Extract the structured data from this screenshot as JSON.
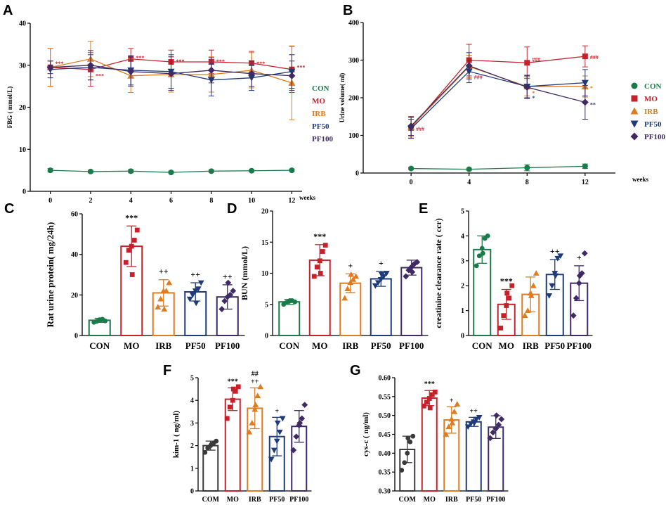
{
  "panel_labels": [
    "A",
    "B",
    "C",
    "D",
    "E",
    "F",
    "G"
  ],
  "colors": {
    "CON": "#1a7a4a",
    "MO": "#c8202b",
    "IRB": "#e07b1f",
    "PF50": "#1e3a7a",
    "PF100": "#3f2a63",
    "COM": "#3a3a3a",
    "annotation": "#c8202b",
    "black": "#222222"
  },
  "chart_data": [
    {
      "id": "A",
      "type": "line",
      "ylabel": "FBG ( mmol/L)",
      "xlabel": "weeks",
      "x": [
        0,
        2,
        4,
        6,
        8,
        10,
        12
      ],
      "x_ticks": [
        "0",
        "2",
        "4",
        "6",
        "8",
        "10",
        "12"
      ],
      "ylim": [
        0,
        40
      ],
      "y_ticks": [
        "0",
        "10",
        "20",
        "30",
        "40"
      ],
      "series": [
        {
          "name": "CON",
          "values": [
            5.0,
            4.7,
            4.8,
            4.5,
            4.8,
            4.9,
            5.0
          ],
          "err": [
            0.4,
            0.3,
            0.4,
            0.3,
            0.3,
            0.3,
            0.3
          ]
        },
        {
          "name": "MO",
          "values": [
            29.5,
            29.0,
            31.5,
            30.8,
            30.8,
            30.5,
            29.0
          ],
          "err": [
            4.5,
            4.0,
            2.5,
            2.8,
            2.8,
            2.8,
            5.5
          ]
        },
        {
          "name": "IRB",
          "values": [
            29.5,
            31.5,
            27.5,
            27.8,
            27.8,
            28.8,
            25.8
          ],
          "err": [
            4.5,
            4.2,
            4.0,
            4.2,
            4.2,
            4.2,
            8.8
          ]
        },
        {
          "name": "PF50",
          "values": [
            29.0,
            29.5,
            28.8,
            28.5,
            26.5,
            27.0,
            28.5
          ],
          "err": [
            2.0,
            3.0,
            3.5,
            4.0,
            3.8,
            3.0,
            4.0
          ]
        },
        {
          "name": "PF100",
          "values": [
            29.5,
            30.0,
            28.5,
            28.0,
            28.8,
            28.0,
            27.5
          ],
          "err": [
            1.5,
            3.5,
            3.5,
            4.0,
            3.0,
            3.0,
            3.5
          ]
        }
      ],
      "annotations": [
        {
          "text": "***",
          "x": 0,
          "y": 30.5
        },
        {
          "text": "***",
          "x": 2,
          "y": 27.5
        },
        {
          "text": "***",
          "x": 4,
          "y": 31.8
        },
        {
          "text": "***",
          "x": 6,
          "y": 31.0
        },
        {
          "text": "***",
          "x": 8,
          "y": 31.0
        },
        {
          "text": "***",
          "x": 10,
          "y": 30.5
        },
        {
          "text": "***",
          "x": 12,
          "y": 29.5
        }
      ]
    },
    {
      "id": "B",
      "type": "line",
      "ylabel": "Urine volume( ml)",
      "xlabel": "weeks",
      "x": [
        0,
        4,
        8,
        12
      ],
      "x_ticks": [
        "0",
        "4",
        "8",
        "12"
      ],
      "ylim": [
        0,
        400
      ],
      "y_ticks": [
        "0",
        "100",
        "200",
        "300",
        "400"
      ],
      "series": [
        {
          "name": "CON",
          "values": [
            12,
            10,
            14,
            18
          ],
          "err": [
            3,
            3,
            8,
            6
          ]
        },
        {
          "name": "MO",
          "values": [
            120,
            300,
            293,
            310
          ],
          "err": [
            28,
            42,
            42,
            28
          ]
        },
        {
          "name": "IRB",
          "values": [
            122,
            283,
            230,
            230
          ],
          "err": [
            25,
            30,
            25,
            28
          ]
        },
        {
          "name": "PF50",
          "values": [
            118,
            270,
            230,
            240
          ],
          "err": [
            25,
            30,
            30,
            35
          ]
        },
        {
          "name": "PF100",
          "values": [
            125,
            285,
            228,
            188
          ],
          "err": [
            25,
            35,
            30,
            45
          ]
        }
      ],
      "legend": [
        "CON",
        "MO",
        "IRB",
        "PF50",
        "PF100"
      ],
      "annotations": [
        {
          "text": "###",
          "x": 0,
          "y": 118,
          "color": "MO"
        },
        {
          "text": "###",
          "x": 4,
          "y": 255,
          "color": "MO"
        },
        {
          "text": "###",
          "x": 8,
          "y": 302,
          "color": "MO"
        },
        {
          "text": "###",
          "x": 12,
          "y": 308,
          "color": "MO"
        },
        {
          "text": "*",
          "x": 8,
          "y": 213,
          "color": "IRB"
        },
        {
          "text": "*",
          "x": 8,
          "y": 200,
          "color": "PF50"
        },
        {
          "text": "*",
          "x": 12,
          "y": 226,
          "color": "IRB"
        },
        {
          "text": "**",
          "x": 12,
          "y": 182,
          "color": "PF100"
        }
      ]
    },
    {
      "id": "C",
      "type": "bar",
      "ylabel": "Rat urine protein( mg/24h)",
      "categories": [
        "CON",
        "MO",
        "IRB",
        "PF50",
        "PF100"
      ],
      "values": [
        7.5,
        44,
        21,
        21.5,
        19
      ],
      "err": [
        1.0,
        10,
        6.5,
        4.5,
        6.0
      ],
      "points": [
        [
          6.5,
          7.0,
          7.8,
          8.0,
          7.2,
          7.5
        ],
        [
          36,
          42,
          44,
          47,
          52,
          30
        ],
        [
          14,
          18,
          22,
          22,
          26,
          13
        ],
        [
          18,
          20,
          22,
          23,
          26,
          16
        ],
        [
          13,
          17,
          19,
          20,
          22,
          26
        ]
      ],
      "ylim": [
        0,
        60
      ],
      "y_ticks": [
        "0",
        "20",
        "40",
        "60"
      ],
      "annotations": [
        "",
        "***",
        "++",
        "++",
        "++"
      ]
    },
    {
      "id": "D",
      "type": "bar",
      "ylabel": "BUN (mmol/L)",
      "categories": [
        "CON",
        "MO",
        "IRB",
        "PF50",
        "PF100"
      ],
      "values": [
        5.4,
        12.1,
        8.4,
        9.1,
        10.9
      ],
      "err": [
        0.4,
        2.5,
        1.5,
        1.2,
        1.2
      ],
      "points": [
        [
          5.0,
          5.3,
          5.5,
          5.6,
          5.4,
          5.6
        ],
        [
          9.5,
          11,
          12,
          13.5,
          14.5,
          10
        ],
        [
          6,
          7.5,
          8.5,
          9,
          9.5,
          9.8
        ],
        [
          8,
          8.5,
          9,
          9.5,
          10,
          9.8
        ],
        [
          9.5,
          10.5,
          11,
          11.5,
          11.8,
          10.2
        ]
      ],
      "ylim": [
        0,
        20
      ],
      "y_ticks": [
        "0",
        "5",
        "10",
        "15",
        "20"
      ],
      "annotations": [
        "",
        "***",
        "+",
        "+",
        ""
      ]
    },
    {
      "id": "E",
      "type": "bar",
      "ylabel": "creatinine clearance rate ( ccr)",
      "categories": [
        "CON",
        "MO",
        "IRB",
        "PF50",
        "PF100"
      ],
      "values": [
        3.45,
        1.25,
        1.65,
        2.45,
        2.1
      ],
      "err": [
        0.55,
        0.6,
        0.7,
        0.6,
        0.7
      ],
      "points": [
        [
          2.8,
          3.2,
          3.5,
          3.9,
          4.0,
          3.3
        ],
        [
          0.3,
          0.8,
          1.2,
          1.5,
          2.0,
          1.7
        ],
        [
          0.8,
          1.0,
          1.7,
          2.0,
          2.5,
          1.6
        ],
        [
          1.6,
          2.0,
          2.5,
          3.1,
          3.2,
          2.4
        ],
        [
          0.8,
          1.5,
          2.1,
          2.5,
          3.3,
          2.4
        ]
      ],
      "ylim": [
        0,
        5
      ],
      "y_ticks": [
        "0",
        "1",
        "2",
        "3",
        "4",
        "5"
      ],
      "annotations": [
        "",
        "***",
        "",
        "++",
        "+"
      ]
    },
    {
      "id": "F",
      "type": "bar",
      "ylabel": "kim-1 ( ng/ml)",
      "categories": [
        "COM",
        "MO",
        "IRB",
        "PF50",
        "PF100"
      ],
      "values": [
        2.0,
        4.05,
        3.65,
        2.4,
        2.85
      ],
      "err": [
        0.2,
        0.5,
        0.9,
        0.85,
        0.7
      ],
      "points": [
        [
          1.7,
          1.9,
          2.0,
          2.1,
          2.2,
          2.05
        ],
        [
          3.2,
          3.7,
          4.0,
          4.4,
          4.6,
          4.5
        ],
        [
          2.6,
          3.0,
          3.6,
          4.2,
          4.6,
          3.8
        ],
        [
          1.4,
          1.8,
          2.2,
          2.6,
          3.2,
          3.0
        ],
        [
          1.8,
          2.4,
          2.9,
          3.2,
          3.8,
          3.0
        ]
      ],
      "ylim": [
        0,
        5
      ],
      "y_ticks": [
        "0",
        "1",
        "2",
        "3",
        "4",
        "5"
      ],
      "annotations": [
        "",
        "***",
        "## ++",
        "+",
        ""
      ]
    },
    {
      "id": "G",
      "type": "bar",
      "ylabel": "cys-c ( ng/ml)",
      "categories": [
        "COM",
        "MO",
        "IRB",
        "PF50",
        "PF100"
      ],
      "values": [
        0.41,
        0.546,
        0.488,
        0.483,
        0.469
      ],
      "err": [
        0.035,
        0.02,
        0.035,
        0.012,
        0.03
      ],
      "points": [
        [
          0.355,
          0.375,
          0.4,
          0.43,
          0.445,
          0.44
        ],
        [
          0.525,
          0.535,
          0.545,
          0.555,
          0.562,
          0.52
        ],
        [
          0.45,
          0.47,
          0.49,
          0.51,
          0.53,
          0.48
        ],
        [
          0.47,
          0.478,
          0.483,
          0.49,
          0.495,
          0.48
        ],
        [
          0.44,
          0.455,
          0.465,
          0.475,
          0.49,
          0.5
        ]
      ],
      "ylim": [
        0.3,
        0.6
      ],
      "y_ticks": [
        "0.30",
        "0.35",
        "0.40",
        "0.45",
        "0.50",
        "0.55",
        "0.60"
      ],
      "annotations": [
        "",
        "***",
        "+",
        "++",
        ""
      ]
    }
  ]
}
